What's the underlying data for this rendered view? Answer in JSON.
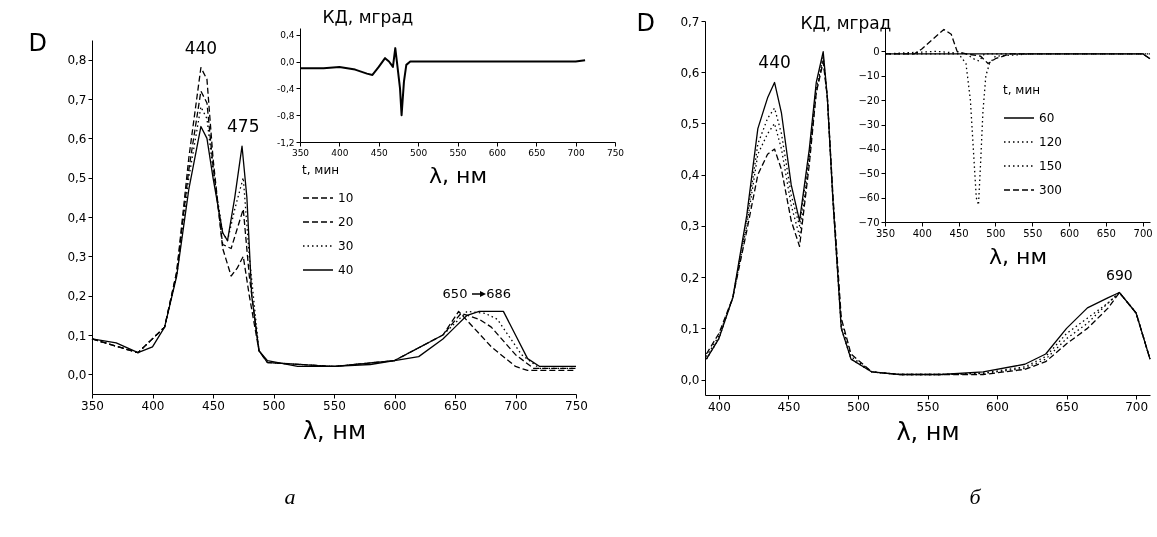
{
  "chart_data": [
    {
      "type": "line",
      "xlabel": "λ, нм",
      "ylabel": "D",
      "legend_title": "t, мин",
      "legend": "right",
      "xlim": [
        350,
        750
      ],
      "ylim": [
        -0.05,
        0.85
      ],
      "xticks": [
        350,
        400,
        450,
        500,
        550,
        600,
        650,
        700,
        750
      ],
      "yticks": [
        {
          "value": 0,
          "label": "0,0"
        },
        {
          "value": 0.1,
          "label": "0,1"
        },
        {
          "value": 0.2,
          "label": "0,2"
        },
        {
          "value": 0.3,
          "label": "0,3"
        },
        {
          "value": 0.4,
          "label": "0,4"
        },
        {
          "value": 0.5,
          "label": "0,5"
        },
        {
          "value": 0.6,
          "label": "0,6"
        },
        {
          "value": 0.7,
          "label": "0,7"
        },
        {
          "value": 0.8,
          "label": "0,8"
        }
      ],
      "annotations": [
        {
          "text": "440",
          "x": 440,
          "y": 0.78
        },
        {
          "text": "475",
          "x": 475,
          "y": 0.58
        },
        {
          "text": "650",
          "x": 650,
          "y": 0.16
        },
        {
          "text": "686",
          "x": 686,
          "y": 0.16
        },
        "а"
      ],
      "series": [
        {
          "name": "10",
          "color": "#000000",
          "line_style": "dashed",
          "x": [
            350,
            388,
            410,
            420,
            430,
            440,
            445,
            450,
            458,
            465,
            470,
            475,
            480,
            488,
            495,
            550,
            600,
            640,
            653,
            665,
            680,
            700,
            710,
            750
          ],
          "values": [
            0.09,
            0.055,
            0.12,
            0.26,
            0.55,
            0.78,
            0.75,
            0.55,
            0.32,
            0.25,
            0.27,
            0.3,
            0.2,
            0.06,
            0.03,
            0.02,
            0.035,
            0.1,
            0.16,
            0.12,
            0.07,
            0.02,
            0.01,
            0.01
          ]
        },
        {
          "name": "20",
          "color": "#000000",
          "line_style": "dashed",
          "x": [
            350,
            388,
            410,
            420,
            430,
            440,
            445,
            450,
            458,
            465,
            470,
            475,
            480,
            488,
            495,
            550,
            600,
            640,
            655,
            670,
            680,
            700,
            715,
            750
          ],
          "values": [
            0.09,
            0.055,
            0.12,
            0.26,
            0.52,
            0.72,
            0.69,
            0.53,
            0.33,
            0.32,
            0.37,
            0.42,
            0.25,
            0.06,
            0.03,
            0.02,
            0.035,
            0.1,
            0.155,
            0.14,
            0.12,
            0.05,
            0.015,
            0.015
          ]
        },
        {
          "name": "30",
          "color": "#000000",
          "line_style": "dotted",
          "x": [
            350,
            388,
            410,
            420,
            430,
            440,
            445,
            450,
            458,
            462,
            468,
            475,
            480,
            488,
            495,
            550,
            600,
            640,
            660,
            675,
            685,
            705,
            720,
            750
          ],
          "values": [
            0.09,
            0.055,
            0.12,
            0.25,
            0.5,
            0.68,
            0.65,
            0.52,
            0.36,
            0.34,
            0.42,
            0.5,
            0.3,
            0.06,
            0.03,
            0.02,
            0.035,
            0.1,
            0.16,
            0.155,
            0.14,
            0.05,
            0.015,
            0.015
          ]
        },
        {
          "name": "40",
          "color": "#000000",
          "line_style": "solid",
          "x": [
            350,
            370,
            388,
            400,
            410,
            420,
            430,
            440,
            445,
            450,
            458,
            462,
            468,
            474,
            478,
            482,
            488,
            495,
            520,
            550,
            580,
            600,
            620,
            640,
            650,
            660,
            670,
            690,
            700,
            710,
            720,
            750
          ],
          "values": [
            0.09,
            0.08,
            0.055,
            0.07,
            0.12,
            0.25,
            0.47,
            0.63,
            0.6,
            0.5,
            0.36,
            0.34,
            0.45,
            0.58,
            0.45,
            0.2,
            0.06,
            0.035,
            0.02,
            0.02,
            0.025,
            0.035,
            0.045,
            0.09,
            0.12,
            0.15,
            0.16,
            0.16,
            0.1,
            0.04,
            0.02,
            0.02
          ]
        }
      ]
    },
    {
      "type": "line",
      "xlabel": "λ, нм",
      "ylabel": "КД, мград",
      "xlim": [
        350,
        750
      ],
      "ylim": [
        -1.2,
        0.5
      ],
      "xticks": [
        350,
        400,
        450,
        500,
        550,
        600,
        650,
        700,
        750
      ],
      "yticks": [
        {
          "value": 0.4,
          "label": "0,4"
        },
        {
          "value": 0,
          "label": "0,0"
        },
        {
          "value": -0.4,
          "label": "-0,4"
        },
        {
          "value": -0.8,
          "label": "-0,8"
        },
        {
          "value": -1.2,
          "label": "-1,2"
        }
      ],
      "series": [
        {
          "color": "#000000",
          "line_style": "solid",
          "x": [
            350,
            380,
            400,
            420,
            435,
            442,
            450,
            458,
            463,
            468,
            471,
            474,
            477,
            479,
            482,
            485,
            490,
            550,
            600,
            650,
            700,
            712
          ],
          "values": [
            -0.1,
            -0.1,
            -0.08,
            -0.12,
            -0.18,
            -0.2,
            -0.08,
            0.05,
            0,
            -0.08,
            0.2,
            -0.1,
            -0.4,
            -0.8,
            -0.3,
            -0.05,
            0,
            0,
            0,
            0,
            0,
            0.02
          ]
        }
      ]
    },
    {
      "type": "line",
      "xlabel": "λ, нм",
      "ylabel": "D",
      "xlim": [
        390,
        710
      ],
      "ylim": [
        -0.03,
        0.7
      ],
      "xticks": [
        400,
        450,
        500,
        550,
        600,
        650,
        700
      ],
      "yticks": [
        {
          "value": 0,
          "label": "0,0"
        },
        {
          "value": 0.1,
          "label": "0,1"
        },
        {
          "value": 0.2,
          "label": "0,2"
        },
        {
          "value": 0.3,
          "label": "0,3"
        },
        {
          "value": 0.4,
          "label": "0,4"
        },
        {
          "value": 0.5,
          "label": "0,5"
        },
        {
          "value": 0.6,
          "label": "0,6"
        },
        {
          "value": 0.7,
          "label": "0,7"
        }
      ],
      "annotations": [
        {
          "text": "440",
          "x": 440,
          "y": 0.58
        },
        {
          "text": "690",
          "x": 688,
          "y": 0.17
        },
        "б"
      ],
      "series": [
        {
          "color": "#000000",
          "line_style": "solid",
          "x": [
            391,
            400,
            410,
            420,
            428,
            435,
            440,
            445,
            452,
            458,
            465,
            470,
            475,
            478,
            482,
            488,
            495,
            510,
            530,
            560,
            590,
            620,
            635,
            650,
            665,
            680,
            688,
            700,
            710
          ],
          "values": [
            0.04,
            0.08,
            0.16,
            0.32,
            0.49,
            0.55,
            0.58,
            0.52,
            0.38,
            0.31,
            0.45,
            0.58,
            0.64,
            0.55,
            0.35,
            0.1,
            0.04,
            0.015,
            0.01,
            0.01,
            0.015,
            0.03,
            0.05,
            0.1,
            0.14,
            0.16,
            0.17,
            0.13,
            0.04
          ]
        },
        {
          "color": "#000000",
          "line_style": "dotted",
          "x": [
            391,
            400,
            410,
            420,
            428,
            435,
            440,
            445,
            452,
            458,
            465,
            470,
            475,
            478,
            482,
            488,
            495,
            510,
            530,
            560,
            590,
            620,
            635,
            650,
            665,
            680,
            688,
            700,
            710
          ],
          "values": [
            0.04,
            0.08,
            0.16,
            0.31,
            0.46,
            0.51,
            0.53,
            0.48,
            0.36,
            0.3,
            0.44,
            0.57,
            0.63,
            0.55,
            0.35,
            0.1,
            0.04,
            0.015,
            0.01,
            0.01,
            0.013,
            0.025,
            0.045,
            0.09,
            0.12,
            0.15,
            0.17,
            0.13,
            0.04
          ]
        },
        {
          "color": "#000000",
          "line_style": "dotted",
          "x": [
            391,
            400,
            410,
            420,
            428,
            435,
            440,
            445,
            452,
            458,
            465,
            470,
            475,
            478,
            482,
            488,
            495,
            510,
            530,
            560,
            590,
            620,
            635,
            650,
            665,
            680,
            688,
            700,
            710
          ],
          "values": [
            0.045,
            0.085,
            0.16,
            0.3,
            0.44,
            0.48,
            0.5,
            0.45,
            0.34,
            0.28,
            0.43,
            0.56,
            0.63,
            0.55,
            0.35,
            0.11,
            0.045,
            0.015,
            0.01,
            0.01,
            0.012,
            0.022,
            0.04,
            0.08,
            0.11,
            0.15,
            0.17,
            0.13,
            0.04
          ]
        },
        {
          "color": "#000000",
          "line_style": "dashed",
          "x": [
            391,
            400,
            410,
            420,
            428,
            435,
            440,
            445,
            452,
            458,
            465,
            470,
            475,
            478,
            482,
            488,
            495,
            510,
            530,
            560,
            590,
            620,
            635,
            650,
            665,
            680,
            688,
            700,
            710
          ],
          "values": [
            0.05,
            0.09,
            0.16,
            0.29,
            0.4,
            0.44,
            0.45,
            0.41,
            0.31,
            0.26,
            0.42,
            0.56,
            0.62,
            0.55,
            0.36,
            0.12,
            0.05,
            0.015,
            0.01,
            0.01,
            0.01,
            0.02,
            0.035,
            0.07,
            0.1,
            0.14,
            0.17,
            0.13,
            0.04
          ]
        }
      ]
    },
    {
      "type": "line",
      "xlabel": "λ, нм",
      "ylabel": "КД, мград",
      "legend_title": "t, мин",
      "legend": "right",
      "xlim": [
        350,
        710
      ],
      "ylim": [
        -70,
        10
      ],
      "xticks": [
        350,
        400,
        450,
        500,
        550,
        600,
        650,
        700
      ],
      "yticks": [
        0,
        -10,
        -20,
        -30,
        -40,
        -50,
        -60,
        -70
      ],
      "series": [
        {
          "name": "60",
          "color": "#000000",
          "line_style": "solid",
          "x": [
            350,
            450,
            550,
            650,
            700,
            710
          ],
          "values": [
            -1,
            -1,
            -1,
            -1,
            -1,
            -3
          ]
        },
        {
          "name": "120",
          "color": "#000000",
          "line_style": "dotted",
          "x": [
            350,
            420,
            460,
            470,
            478,
            485,
            550,
            710
          ],
          "values": [
            -1,
            0,
            -1,
            -3,
            -4,
            -1,
            -1,
            -1
          ]
        },
        {
          "name": "150",
          "color": "#000000",
          "line_style": "dotted",
          "x": [
            350,
            450,
            460,
            466,
            470,
            474,
            477,
            480,
            483,
            487,
            492,
            500,
            550,
            710
          ],
          "values": [
            -1,
            -1,
            -5,
            -20,
            -40,
            -60,
            -63,
            -45,
            -25,
            -10,
            -5,
            -2,
            -1,
            -1
          ]
        },
        {
          "name": "300",
          "color": "#000000",
          "line_style": "dashed",
          "x": [
            350,
            390,
            400,
            415,
            430,
            440,
            448,
            460,
            480,
            490,
            500,
            520,
            600,
            700,
            710
          ],
          "values": [
            -1,
            -1,
            1,
            5,
            9,
            7,
            0,
            -1,
            -2,
            -5,
            -3,
            -1,
            -1,
            -1,
            -3
          ]
        }
      ]
    }
  ]
}
